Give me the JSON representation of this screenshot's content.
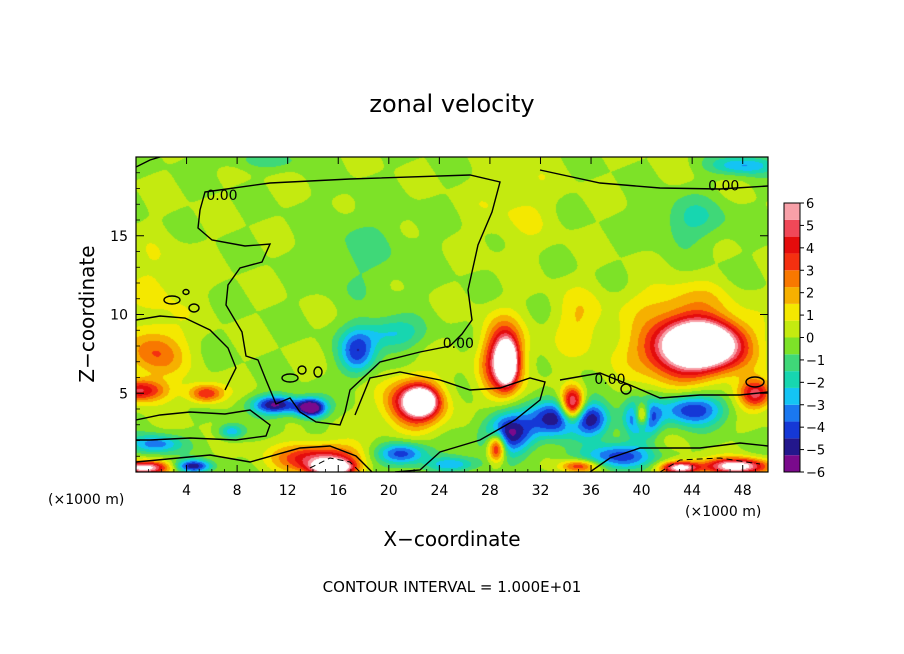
{
  "chart_data": {
    "type": "heatmap",
    "title": "zonal velocity",
    "xlabel": "X−coordinate",
    "ylabel": "Z−coordinate",
    "x_unit_label_left": "(×1000 m)",
    "x_unit_label_right": "(×1000 m)",
    "footer": "CONTOUR INTERVAL = 1.000E+01",
    "xlim": [
      0,
      50
    ],
    "ylim": [
      0,
      20
    ],
    "x_ticks": [
      4,
      8,
      12,
      16,
      20,
      24,
      28,
      32,
      36,
      40,
      44,
      48
    ],
    "x_tick_labels": [
      "4",
      "8",
      "12",
      "16",
      "20",
      "24",
      "28",
      "32",
      "36",
      "40",
      "44",
      "48"
    ],
    "y_ticks": [
      5,
      10,
      15
    ],
    "y_tick_labels": [
      "5",
      "10",
      "15"
    ],
    "colorbar": {
      "min": -6,
      "max": 6,
      "tick_values": [
        6,
        5,
        4,
        3,
        2,
        1,
        0,
        -1,
        -2,
        -3,
        -4,
        -5,
        -6
      ],
      "tick_labels": [
        "6",
        "5",
        "4",
        "3",
        "2",
        "1",
        "0",
        "−1",
        "−2",
        "−3",
        "−4",
        "−5",
        "−6"
      ],
      "colors": [
        "#7a0a8c",
        "#23178c",
        "#1538d6",
        "#1a78f0",
        "#14c4f4",
        "#17d6b0",
        "#3fd878",
        "#7de228",
        "#c4ea10",
        "#f4e800",
        "#f6b000",
        "#f87800",
        "#f43010",
        "#e40c0c",
        "#f04858",
        "#f8a0a8",
        "#ffffff"
      ]
    },
    "contour_labels": [
      {
        "text": "0.00",
        "x": 6.8,
        "y": 17.6
      },
      {
        "text": "0.00",
        "x": 46.5,
        "y": 18.2
      },
      {
        "text": "0.00",
        "x": 25.5,
        "y": 8.2
      },
      {
        "text": "0.00",
        "x": 37.5,
        "y": 5.9
      }
    ],
    "blobs": [
      {
        "x": 0.3,
        "y": 5.2,
        "sx": 2.0,
        "sy": 0.7,
        "v": 4.6
      },
      {
        "x": 1.5,
        "y": 7.6,
        "sx": 2.2,
        "sy": 1.6,
        "v": 3.0
      },
      {
        "x": 5.5,
        "y": 5.0,
        "sx": 1.4,
        "sy": 0.6,
        "v": 4.0
      },
      {
        "x": 1.5,
        "y": 1.8,
        "sx": 2.0,
        "sy": 0.6,
        "v": -3.5
      },
      {
        "x": 0.5,
        "y": 0.3,
        "sx": 2.0,
        "sy": 0.4,
        "v": 6.5
      },
      {
        "x": 7.5,
        "y": 2.6,
        "sx": 1.0,
        "sy": 0.5,
        "v": -3.0
      },
      {
        "x": 4.5,
        "y": 0.4,
        "sx": 1.4,
        "sy": 0.4,
        "v": -5.0
      },
      {
        "x": 11.0,
        "y": 4.3,
        "sx": 1.8,
        "sy": 0.6,
        "v": -5.5
      },
      {
        "x": 13.8,
        "y": 4.1,
        "sx": 1.2,
        "sy": 0.6,
        "v": -6.8
      },
      {
        "x": 14.5,
        "y": 0.9,
        "sx": 3.2,
        "sy": 0.9,
        "v": 5.0
      },
      {
        "x": 15.5,
        "y": 0.3,
        "sx": 1.6,
        "sy": 0.5,
        "v": 7.5
      },
      {
        "x": 17.5,
        "y": 7.6,
        "sx": 1.4,
        "sy": 1.4,
        "v": -4.0
      },
      {
        "x": 20.0,
        "y": 8.8,
        "sx": 2.5,
        "sy": 1.0,
        "v": -2.5
      },
      {
        "x": 22.0,
        "y": 4.4,
        "sx": 2.2,
        "sy": 1.5,
        "v": 6.0
      },
      {
        "x": 22.5,
        "y": 4.5,
        "sx": 1.0,
        "sy": 0.7,
        "v": 8.0
      },
      {
        "x": 21.0,
        "y": 1.2,
        "sx": 2.0,
        "sy": 0.7,
        "v": -4.5
      },
      {
        "x": 25.0,
        "y": 0.5,
        "sx": 2.0,
        "sy": 0.5,
        "v": -3.0
      },
      {
        "x": 29.0,
        "y": 7.2,
        "sx": 1.6,
        "sy": 2.2,
        "v": 6.0
      },
      {
        "x": 29.3,
        "y": 7.0,
        "sx": 0.7,
        "sy": 1.2,
        "v": 8.0
      },
      {
        "x": 29.5,
        "y": 2.5,
        "sx": 2.0,
        "sy": 1.3,
        "v": -5.5
      },
      {
        "x": 28.5,
        "y": 1.6,
        "sx": 0.7,
        "sy": 0.9,
        "v": 6.0
      },
      {
        "x": 33.0,
        "y": 3.5,
        "sx": 1.8,
        "sy": 1.2,
        "v": -5.0
      },
      {
        "x": 34.5,
        "y": 4.3,
        "sx": 0.9,
        "sy": 1.1,
        "v": 7.0
      },
      {
        "x": 36.0,
        "y": 3.4,
        "sx": 1.5,
        "sy": 1.1,
        "v": -5.0
      },
      {
        "x": 40.0,
        "y": 3.4,
        "sx": 1.3,
        "sy": 1.1,
        "v": -6.0
      },
      {
        "x": 40.0,
        "y": 3.6,
        "sx": 0.6,
        "sy": 0.8,
        "v": 7.0
      },
      {
        "x": 43.5,
        "y": 7.8,
        "sx": 3.8,
        "sy": 1.9,
        "v": 6.0
      },
      {
        "x": 45.0,
        "y": 8.2,
        "sx": 2.8,
        "sy": 1.4,
        "v": 8.0
      },
      {
        "x": 44.0,
        "y": 4.0,
        "sx": 2.5,
        "sy": 1.0,
        "v": -4.5
      },
      {
        "x": 49.0,
        "y": 5.0,
        "sx": 1.3,
        "sy": 0.9,
        "v": 5.0
      },
      {
        "x": 47.5,
        "y": 0.4,
        "sx": 2.5,
        "sy": 0.5,
        "v": 7.0
      },
      {
        "x": 43.0,
        "y": 0.3,
        "sx": 1.5,
        "sy": 0.4,
        "v": 7.0
      },
      {
        "x": 35.0,
        "y": 0.4,
        "sx": 1.5,
        "sy": 0.4,
        "v": 4.0
      },
      {
        "x": 38.0,
        "y": 1.0,
        "sx": 3.0,
        "sy": 0.8,
        "v": -4.0
      },
      {
        "x": 18.0,
        "y": 14.0,
        "sx": 4.0,
        "sy": 3.0,
        "v": -0.9
      },
      {
        "x": 10.0,
        "y": 19.8,
        "sx": 4.0,
        "sy": 0.6,
        "v": -1.0
      },
      {
        "x": 48.0,
        "y": 19.5,
        "sx": 2.5,
        "sy": 0.6,
        "v": -3.0
      },
      {
        "x": 44.0,
        "y": 16.0,
        "sx": 3.0,
        "sy": 1.5,
        "v": -1.6
      },
      {
        "x": 43.0,
        "y": 10.8,
        "sx": 4.0,
        "sy": 1.3,
        "v": 1.6
      },
      {
        "x": 35.0,
        "y": 9.5,
        "sx": 2.0,
        "sy": 2.0,
        "v": 1.5
      },
      {
        "x": 2.0,
        "y": 12.0,
        "sx": 2.5,
        "sy": 2.5,
        "v": 1.0
      },
      {
        "x": 30.0,
        "y": 17.0,
        "sx": 3.0,
        "sy": 3.0,
        "v": 0.8
      }
    ]
  }
}
